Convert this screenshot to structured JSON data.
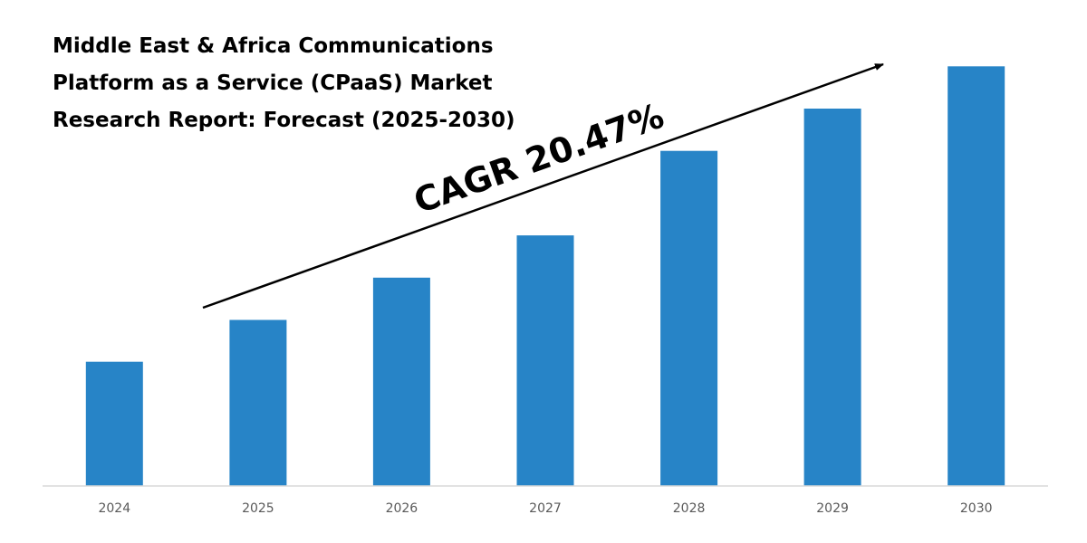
{
  "chart_data": {
    "type": "bar",
    "title_lines": [
      "Middle East & Africa Communications",
      "Platform as a Service (CPaaS) Market",
      "Research Report: Forecast (2025-2030)"
    ],
    "categories": [
      "2024",
      "2025",
      "2026",
      "2027",
      "2028",
      "2029",
      "2030"
    ],
    "values": [
      29.4,
      39.3,
      49.3,
      59.3,
      79.3,
      89.3,
      99.3
    ],
    "ylim": [
      0,
      100
    ],
    "bar_color": "#2784C7",
    "axis_color": "#D9D9D9",
    "grid": false,
    "annotation": "CAGR 20.47%"
  }
}
